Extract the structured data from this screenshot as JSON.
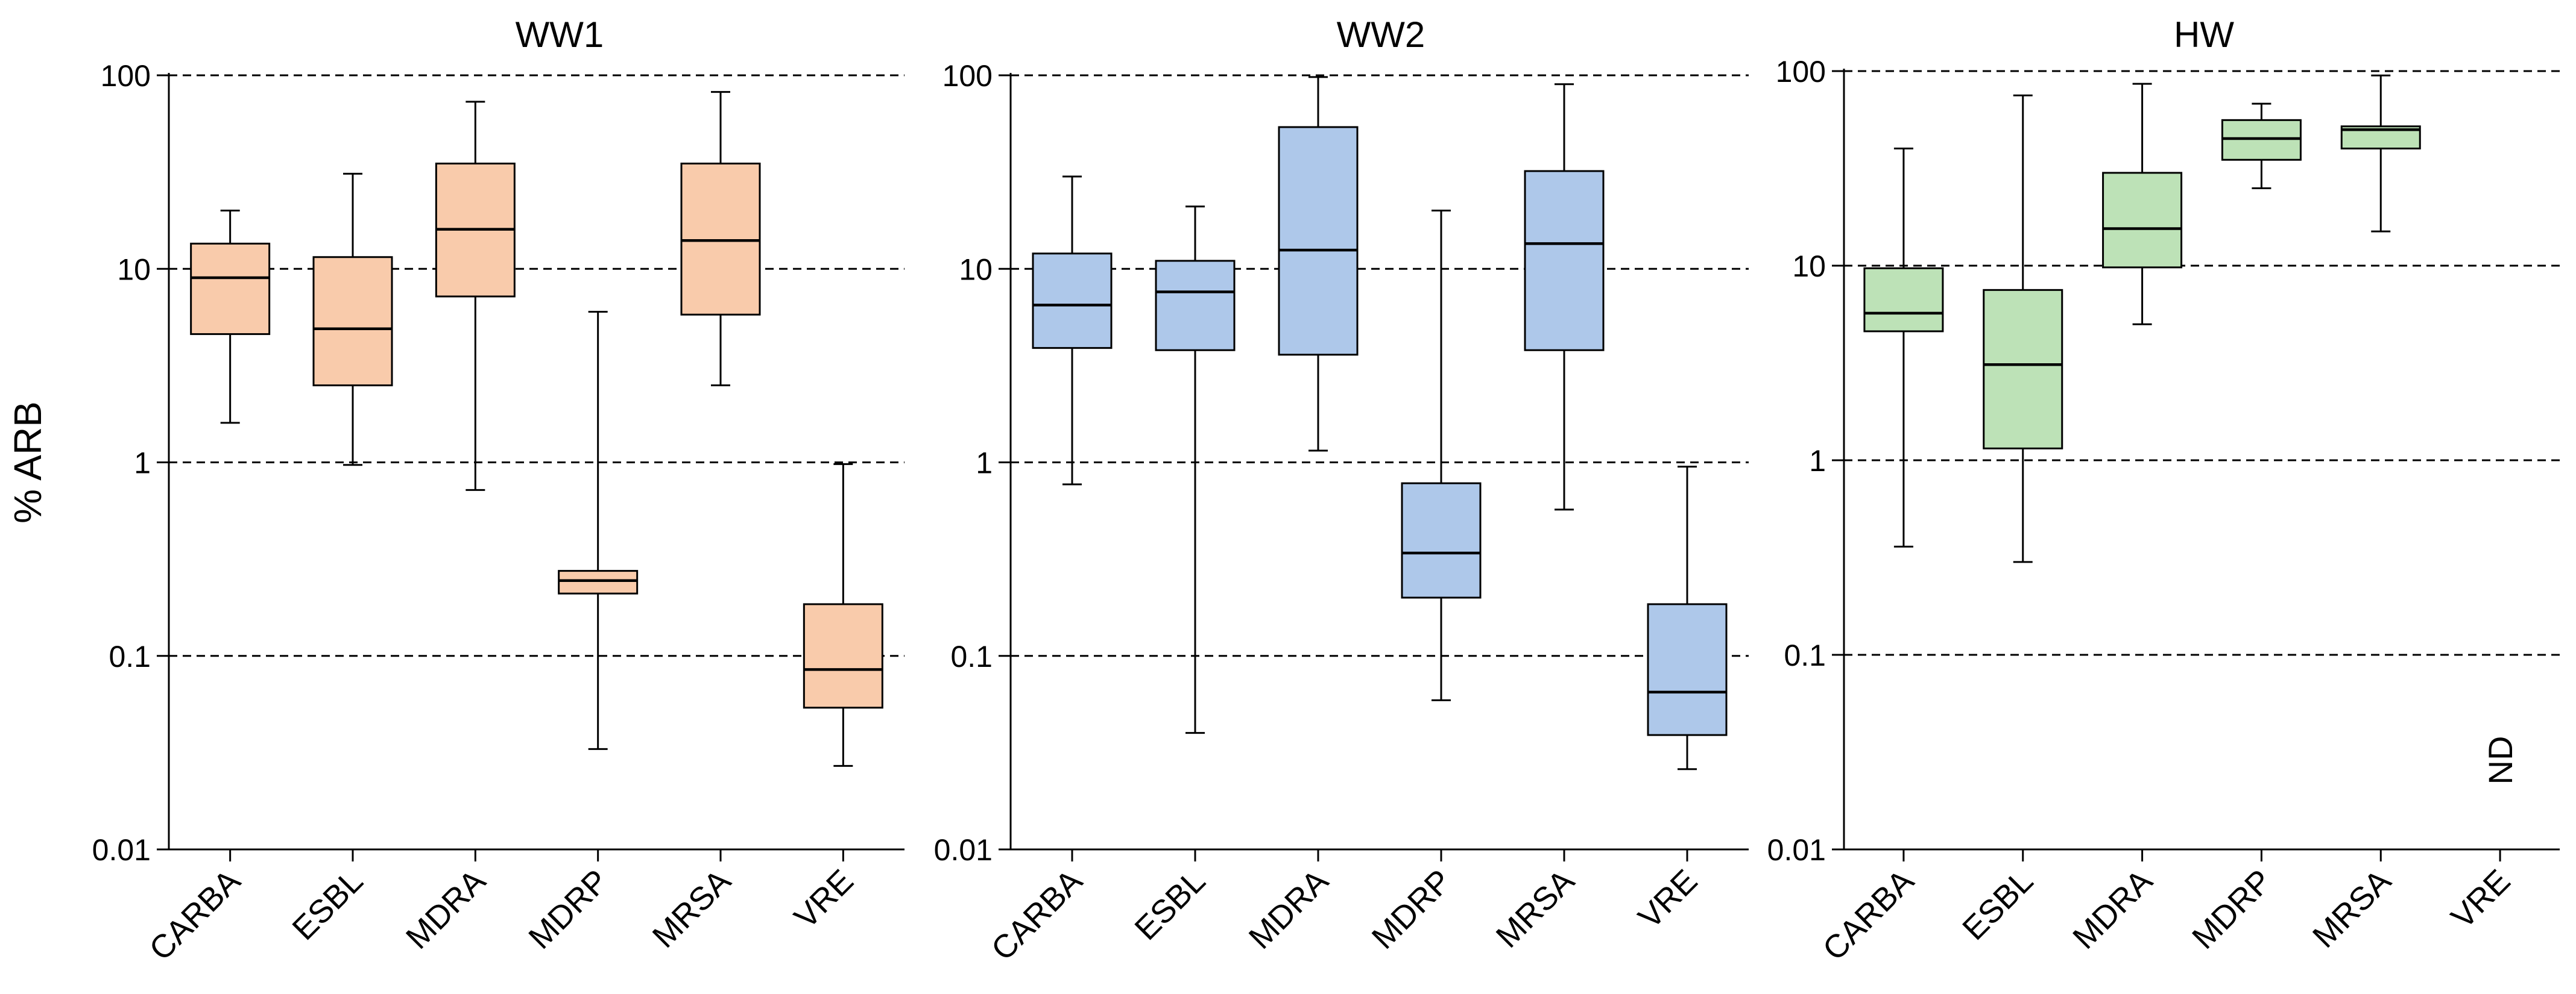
{
  "chart_data": [
    {
      "type": "box",
      "title": "WW1",
      "ylabel": "% ARB",
      "y_scale": "log",
      "ylim": [
        0.01,
        100
      ],
      "y_ticks": [
        "0.01",
        "0.1",
        "1",
        "10",
        "100"
      ],
      "grid": "horizontal dashed at major ticks",
      "color": "#f9cbab",
      "categories": [
        "CARBA",
        "ESBL",
        "MDRA",
        "MDRP",
        "MRSA",
        "VRE"
      ],
      "boxes": [
        {
          "min": 1.6,
          "q1": 4.6,
          "median": 9.0,
          "q3": 13.5,
          "max": 20
        },
        {
          "min": 0.97,
          "q1": 2.5,
          "median": 4.9,
          "q3": 11.5,
          "max": 31
        },
        {
          "min": 0.72,
          "q1": 7.2,
          "median": 16.0,
          "q3": 35,
          "max": 73
        },
        {
          "min": 0.033,
          "q1": 0.21,
          "median": 0.245,
          "q3": 0.275,
          "max": 6.0
        },
        {
          "min": 2.5,
          "q1": 5.8,
          "median": 14.0,
          "q3": 35,
          "max": 82
        },
        {
          "min": 0.027,
          "q1": 0.054,
          "median": 0.085,
          "q3": 0.185,
          "max": 0.98
        }
      ]
    },
    {
      "type": "box",
      "title": "WW2",
      "ylabel": "",
      "y_scale": "log",
      "ylim": [
        0.01,
        100
      ],
      "y_ticks": [
        "0.01",
        "0.1",
        "1",
        "10",
        "100"
      ],
      "grid": "horizontal dashed at major ticks",
      "color": "#aec8ea",
      "categories": [
        "CARBA",
        "ESBL",
        "MDRA",
        "MDRP",
        "MRSA",
        "VRE"
      ],
      "boxes": [
        {
          "min": 0.77,
          "q1": 3.9,
          "median": 6.5,
          "q3": 12.0,
          "max": 30
        },
        {
          "min": 0.04,
          "q1": 3.8,
          "median": 7.6,
          "q3": 11.0,
          "max": 21
        },
        {
          "min": 1.15,
          "q1": 3.6,
          "median": 12.5,
          "q3": 54,
          "max": 98
        },
        {
          "min": 0.059,
          "q1": 0.2,
          "median": 0.34,
          "q3": 0.78,
          "max": 20
        },
        {
          "min": 0.57,
          "q1": 3.8,
          "median": 13.5,
          "q3": 32,
          "max": 90
        },
        {
          "min": 0.026,
          "q1": 0.039,
          "median": 0.065,
          "q3": 0.185,
          "max": 0.95
        }
      ]
    },
    {
      "type": "box",
      "title": "HW",
      "ylabel": "",
      "y_scale": "log",
      "ylim": [
        0.01,
        100
      ],
      "y_ticks": [
        "0.01",
        "0.1",
        "1",
        "10",
        "100"
      ],
      "grid": "horizontal dashed at major ticks",
      "color": "#bde2b7",
      "categories": [
        "CARBA",
        "ESBL",
        "MDRA",
        "MDRP",
        "MRSA",
        "VRE"
      ],
      "annotations": [
        {
          "category": "VRE",
          "text": "ND"
        }
      ],
      "boxes": [
        {
          "min": 0.36,
          "q1": 4.6,
          "median": 5.7,
          "q3": 9.7,
          "max": 40
        },
        {
          "min": 0.3,
          "q1": 1.15,
          "median": 3.1,
          "q3": 7.5,
          "max": 75
        },
        {
          "min": 5.0,
          "q1": 9.8,
          "median": 15.5,
          "q3": 30,
          "max": 86
        },
        {
          "min": 25,
          "q1": 35,
          "median": 45,
          "q3": 56,
          "max": 68
        },
        {
          "min": 15,
          "q1": 40,
          "median": 50,
          "q3": 52,
          "max": 95
        },
        null
      ]
    }
  ]
}
